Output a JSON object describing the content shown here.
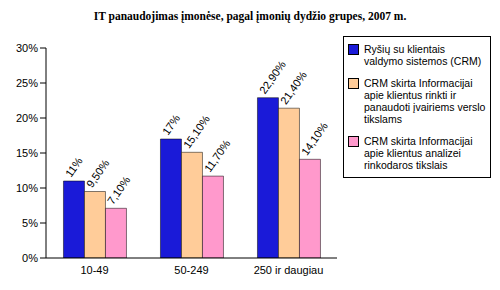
{
  "chart_data": {
    "type": "bar",
    "title": "IT panaudojimas įmonėse, pagal įmonių dydžio grupes, 2007 m.",
    "categories": [
      "10-49",
      "50-249",
      "250 ir daugiau"
    ],
    "series": [
      {
        "name": "Ryšių su klientais valdymo sistemos (CRM)",
        "color": "#1a1ad8",
        "values": [
          11,
          17,
          22.9
        ],
        "value_labels": [
          "11%",
          "17%",
          "22,90%"
        ]
      },
      {
        "name": "CRM skirta Informacijai apie klientus rinkti ir panaudoti įvairiems verslo tikslams",
        "color": "#ffcc99",
        "values": [
          9.5,
          15.1,
          21.4
        ],
        "value_labels": [
          "9,50%",
          "15,10%",
          "21,40%"
        ]
      },
      {
        "name": "CRM skirta Informacijai apie klientus analizei rinkodaros tikslais",
        "color": "#ff99cc",
        "values": [
          7.1,
          11.7,
          14.1
        ],
        "value_labels": [
          "7,10%",
          "11,70%",
          "14,10%"
        ]
      }
    ],
    "ylim": [
      0,
      30
    ],
    "yticks": [
      {
        "value": 0,
        "label": "0%"
      },
      {
        "value": 5,
        "label": "5%"
      },
      {
        "value": 10,
        "label": "10%"
      },
      {
        "value": 15,
        "label": "15%"
      },
      {
        "value": 20,
        "label": "20%"
      },
      {
        "value": 25,
        "label": "25%"
      },
      {
        "value": 30,
        "label": "30%"
      }
    ],
    "grid": false,
    "legend": "right",
    "data_labels": true
  }
}
